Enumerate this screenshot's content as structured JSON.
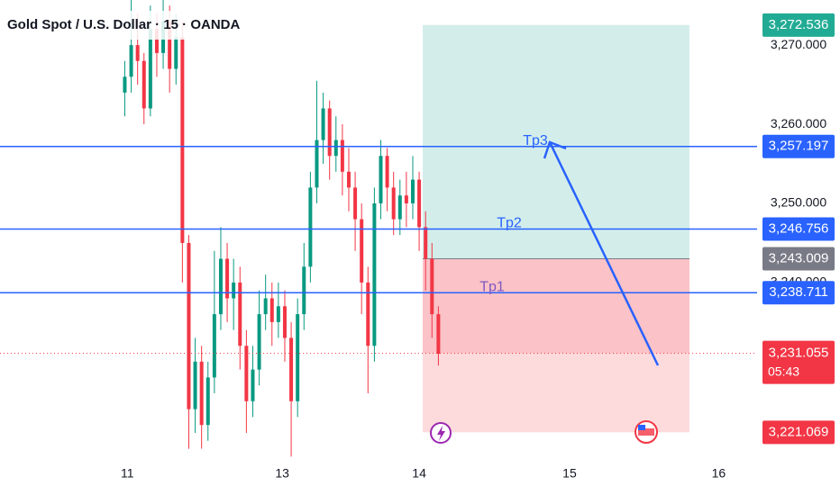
{
  "chart_data": {
    "type": "candlestick",
    "title": "Gold Spot / U.S. Dollar · 15 · OANDA",
    "x": [
      19.5,
      20.5,
      21.5,
      22.5,
      23.5,
      24.5,
      25.5,
      26.5,
      27.5,
      28.5,
      29.5,
      30.5,
      31.5,
      32.5,
      33.5,
      34.5,
      35.5,
      36.5,
      37.5,
      38.5,
      39.5,
      40.5,
      41.5,
      42.5,
      43.5,
      44.5,
      45.5,
      46.5,
      47.5,
      48.5,
      49.5,
      50.5,
      51.5,
      52.5,
      53.5,
      54.5,
      55.5,
      56.5,
      57.5,
      58.5,
      59.5,
      60.5,
      61.5,
      62.5,
      63.5,
      64.5,
      65.5,
      66.5,
      67.5,
      68.5
    ],
    "open": [
      3264,
      3266,
      3270,
      3268,
      3262,
      3272,
      3269,
      3273,
      3267,
      3271,
      3245,
      3224,
      3230,
      3222,
      3228,
      3236,
      3243,
      3238,
      3240,
      3232,
      3225,
      3229,
      3236,
      3238,
      3235,
      3237,
      3233,
      3225,
      3236,
      3242,
      3252,
      3258,
      3262,
      3256,
      3258,
      3254,
      3252,
      3248,
      3240,
      3232,
      3250,
      3256,
      3252,
      3248,
      3251,
      3250,
      3253,
      3247,
      3243,
      3236
    ],
    "high": [
      3268,
      3276,
      3274,
      3269,
      3275,
      3274,
      3276,
      3275,
      3274,
      3273,
      3246,
      3233,
      3232,
      3230,
      3244,
      3247,
      3245,
      3243,
      3242,
      3234,
      3232,
      3239,
      3241,
      3240,
      3240,
      3239,
      3235,
      3238,
      3245,
      3254,
      3265.5,
      3264,
      3263,
      3261,
      3260,
      3257,
      3254,
      3250,
      3242,
      3252,
      3258,
      3257,
      3254,
      3253,
      3254,
      3256,
      3254,
      3249,
      3245,
      3237
    ],
    "low": [
      3261,
      3264,
      3265,
      3260,
      3261,
      3266,
      3267,
      3264,
      3265,
      3240,
      3219,
      3221,
      3219,
      3220,
      3226,
      3234,
      3235,
      3234,
      3229,
      3221,
      3223,
      3227,
      3234,
      3232,
      3233,
      3230,
      3218,
      3223,
      3234,
      3240,
      3250,
      3255,
      3253,
      3254,
      3251,
      3249,
      3244,
      3236,
      3226,
      3230,
      3248,
      3249,
      3246,
      3246,
      3247,
      3248,
      3244,
      3239,
      3233,
      3229.5
    ],
    "close": [
      3266,
      3270,
      3268,
      3262,
      3272,
      3269,
      3273,
      3267,
      3271,
      3245,
      3224,
      3230,
      3222,
      3228,
      3236,
      3243,
      3238,
      3240,
      3232,
      3225,
      3229,
      3236,
      3238,
      3235,
      3237,
      3233,
      3225,
      3236,
      3242,
      3252,
      3258,
      3262,
      3256,
      3258,
      3254,
      3252,
      3248,
      3240,
      3232,
      3250,
      3256,
      3252,
      3248,
      3251,
      3250,
      3253,
      3247,
      3243,
      3236,
      3231
    ],
    "up_color": "#089981",
    "down_color": "#f23645",
    "xlim": [
      0,
      118.3
    ],
    "ylim": [
      3217.7,
      3275.7
    ],
    "xticks": [
      {
        "value": 19.9,
        "label": "11"
      },
      {
        "value": 44.1,
        "label": "13"
      },
      {
        "value": 65.5,
        "label": "14"
      },
      {
        "value": 89.0,
        "label": "15"
      },
      {
        "value": 112.3,
        "label": "16"
      }
    ],
    "yticks": [
      {
        "value": 3270,
        "label": "3,270.000"
      },
      {
        "value": 3260,
        "label": "3,260.000"
      },
      {
        "value": 3250,
        "label": "3,250.000"
      },
      {
        "value": 3240,
        "label": "3,240.000"
      }
    ],
    "grid": false,
    "levels": [
      {
        "name": "Tp3",
        "value": 3257.197,
        "label": "3,257.197",
        "color": "#2962ff"
      },
      {
        "name": "Tp2",
        "value": 3246.756,
        "label": "3,246.756",
        "color": "#2962ff"
      },
      {
        "name": "Tp1",
        "value": 3238.711,
        "label": "3,238.711",
        "color": "#2962ff"
      }
    ],
    "position": {
      "target": {
        "value": 3272.536,
        "label": "3,272.536",
        "color": "#22ab94"
      },
      "entry": {
        "value": 3243.009,
        "label": "3,243.009",
        "color": "#787b86"
      },
      "stop": {
        "value": 3221.069,
        "label": "3,221.069",
        "color": "#f23645"
      }
    },
    "current": {
      "value": 3231.055,
      "label": "3,231.055",
      "countdown": "05:43",
      "color": "#f23645"
    }
  }
}
